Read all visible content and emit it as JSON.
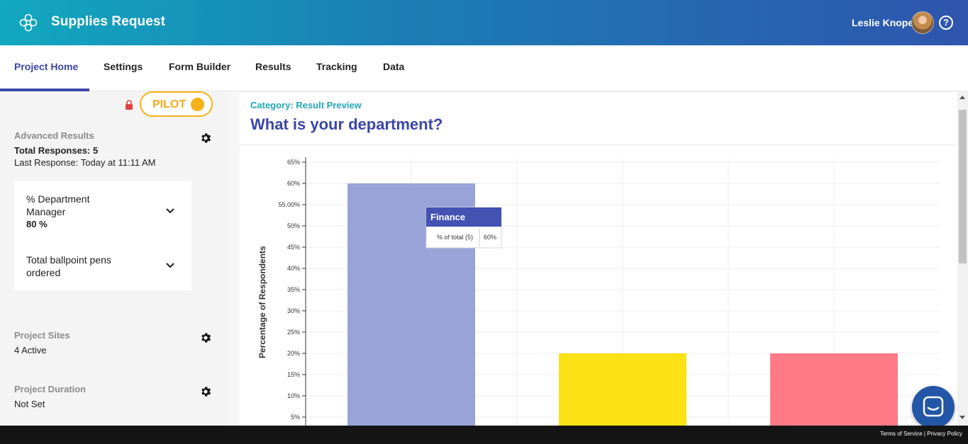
{
  "header": {
    "app_title": "Supplies Request",
    "user_name": "Leslie Knope",
    "help_symbol": "?",
    "logo_icon": "flower-logo-icon",
    "gradient_colors": [
      "#12a8bf",
      "#2f55ad"
    ]
  },
  "tabs": [
    {
      "label": "Project Home",
      "active": true
    },
    {
      "label": "Settings",
      "active": false
    },
    {
      "label": "Form Builder",
      "active": false
    },
    {
      "label": "Results",
      "active": false
    },
    {
      "label": "Tracking",
      "active": false
    },
    {
      "label": "Data",
      "active": false
    }
  ],
  "sidebar": {
    "pilot_label": "PILOT",
    "advanced_results": {
      "title": "Advanced Results",
      "total_responses": "Total Responses: 5",
      "last_response": "Last Response: Today at 11:11 AM"
    },
    "metrics": [
      {
        "label": "% Department Manager",
        "value": "80 %"
      },
      {
        "label": "Total ballpoint pens ordered",
        "value": ""
      }
    ],
    "project_sites": {
      "title": "Project Sites",
      "value": "4 Active"
    },
    "project_duration": {
      "title": "Project Duration",
      "value": "Not Set"
    }
  },
  "main": {
    "category": "Category: Result Preview",
    "question": "What is your department?"
  },
  "tooltip": {
    "title": "Finance",
    "row_label": "% of total (5)",
    "row_value": "60%"
  },
  "chart_data": {
    "type": "bar",
    "categories": [
      "Finance",
      "",
      ""
    ],
    "values": [
      60,
      20,
      20
    ],
    "colors": [
      "#98a4d8",
      "#fce116",
      "#fe7a86"
    ],
    "ylabel": "Percentage of Respondents",
    "ylim": [
      5,
      65
    ],
    "yticks": [
      5,
      10,
      15,
      20,
      25,
      30,
      35,
      40,
      45,
      50,
      55,
      60,
      65
    ],
    "ytick_labels": [
      "5%",
      "10%",
      "15%",
      "20%",
      "25%",
      "30%",
      "35%",
      "40%",
      "45%",
      "50%",
      "55.00%",
      "60%",
      "65%"
    ],
    "grid": true
  },
  "footer": {
    "terms": "Terms of Service",
    "separator": "|",
    "privacy": "Privacy Policy"
  }
}
